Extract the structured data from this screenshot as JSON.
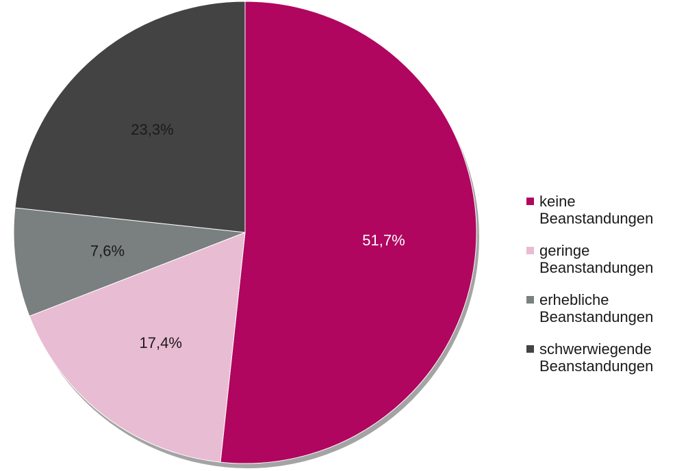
{
  "chart_data": {
    "type": "pie",
    "title": "",
    "slices": [
      {
        "label": "keine\nBeanstandungen",
        "value": 51.7,
        "display": "51,7%",
        "color": "#b0065f",
        "label_color": "#ffffff"
      },
      {
        "label": "geringe\nBeanstandungen",
        "value": 17.4,
        "display": "17,4%",
        "color": "#e8bcd3",
        "label_color": "#1a1a1a"
      },
      {
        "label": "erhebliche\nBeanstandungen",
        "value": 7.6,
        "display": "7,6%",
        "color": "#7a7f7f",
        "label_color": "#1a1a1a"
      },
      {
        "label": "schwerwiegende\nBeanstandungen",
        "value": 23.3,
        "display": "23,3%",
        "color": "#434343",
        "label_color": "#1a1a1a"
      }
    ],
    "start_angle": "12 o'clock",
    "direction": "clockwise",
    "legend_position": "right"
  }
}
